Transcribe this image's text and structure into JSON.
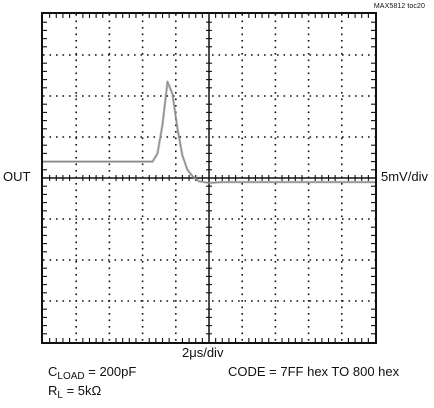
{
  "figure_id": "MAX5812 toc20",
  "chart_data": {
    "type": "line",
    "title": "",
    "channel_label": "OUT",
    "vertical_scale": "5mV/div",
    "time_scale": "2μs/div",
    "divisions": {
      "x": 10,
      "y": 8
    },
    "xlim": [
      0,
      10
    ],
    "ylim": [
      -4,
      4
    ],
    "grid": true,
    "series": [
      {
        "x": [
          0,
          1,
          2,
          3,
          3.3,
          3.45,
          3.6,
          3.75,
          3.9,
          4.05,
          4.2,
          4.35,
          4.5,
          4.7,
          5,
          5.4,
          6,
          7,
          8,
          9,
          10
        ],
        "y": [
          0.4,
          0.4,
          0.4,
          0.4,
          0.4,
          0.6,
          1.3,
          2.35,
          2.05,
          1.2,
          0.55,
          0.2,
          0.05,
          -0.08,
          -0.12,
          -0.1,
          -0.1,
          -0.1,
          -0.1,
          -0.1,
          -0.1
        ]
      }
    ],
    "conditions": {
      "c_load": {
        "symbol": "C",
        "subscript": "LOAD",
        "value": "= 200pF"
      },
      "code": "CODE = 7FF hex TO 800 hex",
      "r_load": {
        "symbol": "R",
        "subscript": "L",
        "value": "= 5kΩ"
      }
    },
    "trace_color": "#8a8a8a"
  }
}
